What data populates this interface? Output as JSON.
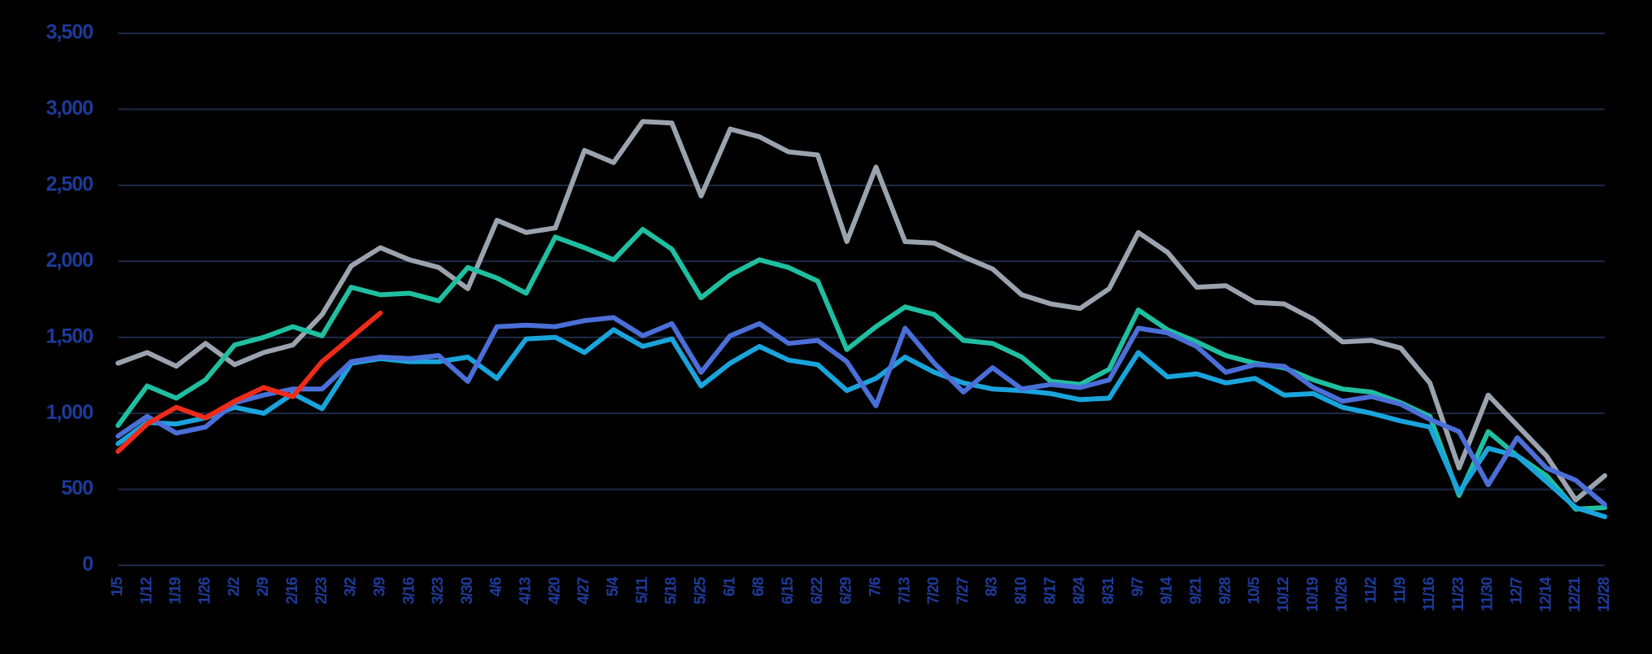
{
  "chart_data": {
    "type": "line",
    "categories": [
      "1/5",
      "1/12",
      "1/19",
      "1/26",
      "2/2",
      "2/9",
      "2/16",
      "2/23",
      "3/2",
      "3/9",
      "3/16",
      "3/23",
      "3/30",
      "4/6",
      "4/13",
      "4/20",
      "4/27",
      "5/4",
      "5/11",
      "5/18",
      "5/25",
      "6/1",
      "6/8",
      "6/15",
      "6/22",
      "6/29",
      "7/6",
      "7/13",
      "7/20",
      "7/27",
      "8/3",
      "8/10",
      "8/17",
      "8/24",
      "8/31",
      "9/7",
      "9/14",
      "9/21",
      "9/28",
      "10/5",
      "10/12",
      "10/19",
      "10/26",
      "11/2",
      "11/9",
      "11/16",
      "11/23",
      "11/30",
      "12/7",
      "12/14",
      "12/21",
      "12/28"
    ],
    "series": [
      {
        "color": "#9ba3ae",
        "values": [
          1330,
          1400,
          1310,
          1460,
          1320,
          1400,
          1450,
          1650,
          1970,
          2090,
          2010,
          1960,
          1820,
          2270,
          2190,
          2220,
          2730,
          2650,
          2920,
          2910,
          2430,
          2870,
          2820,
          2720,
          2700,
          2130,
          2620,
          2130,
          2120,
          2030,
          1950,
          1780,
          1720,
          1690,
          1820,
          2190,
          2060,
          1830,
          1840,
          1730,
          1720,
          1620,
          1470,
          1480,
          1430,
          1200,
          640,
          1120,
          920,
          720,
          430,
          590
        ]
      },
      {
        "color": "#1fbfa0",
        "values": [
          920,
          1180,
          1100,
          1220,
          1450,
          1500,
          1570,
          1510,
          1830,
          1780,
          1790,
          1740,
          1960,
          1890,
          1790,
          2160,
          2090,
          2010,
          2210,
          2080,
          1760,
          1910,
          2010,
          1960,
          1870,
          1420,
          1570,
          1700,
          1650,
          1480,
          1460,
          1370,
          1210,
          1190,
          1290,
          1680,
          1550,
          1470,
          1380,
          1330,
          1300,
          1220,
          1160,
          1140,
          1070,
          980,
          460,
          880,
          720,
          590,
          370,
          380
        ]
      },
      {
        "color": "#1aa4dc",
        "values": [
          800,
          940,
          930,
          970,
          1040,
          1000,
          1130,
          1030,
          1330,
          1360,
          1340,
          1340,
          1370,
          1230,
          1490,
          1500,
          1400,
          1550,
          1440,
          1490,
          1180,
          1330,
          1440,
          1350,
          1320,
          1150,
          1230,
          1370,
          1270,
          1200,
          1160,
          1150,
          1130,
          1090,
          1100,
          1400,
          1240,
          1260,
          1200,
          1230,
          1120,
          1130,
          1040,
          1000,
          950,
          910,
          480,
          770,
          720,
          550,
          380,
          320
        ]
      },
      {
        "color": "#4b6fd8",
        "values": [
          850,
          980,
          870,
          910,
          1070,
          1120,
          1160,
          1160,
          1340,
          1370,
          1360,
          1380,
          1210,
          1570,
          1580,
          1570,
          1610,
          1630,
          1510,
          1590,
          1270,
          1510,
          1590,
          1460,
          1480,
          1340,
          1050,
          1560,
          1330,
          1140,
          1300,
          1160,
          1190,
          1170,
          1220,
          1560,
          1530,
          1440,
          1270,
          1320,
          1310,
          1170,
          1080,
          1110,
          1060,
          960,
          880,
          530,
          840,
          640,
          560,
          400
        ]
      },
      {
        "color": "#ee2b1a",
        "values": [
          750,
          930,
          1040,
          970,
          1080,
          1170,
          1110,
          1340,
          1500,
          1660,
          null,
          null,
          null,
          null,
          null,
          null,
          null,
          null,
          null,
          null,
          null,
          null,
          null,
          null,
          null,
          null,
          null,
          null,
          null,
          null,
          null,
          null,
          null,
          null,
          null,
          null,
          null,
          null,
          null,
          null,
          null,
          null,
          null,
          null,
          null,
          null,
          null,
          null,
          null,
          null,
          null,
          null
        ]
      }
    ],
    "ylim": [
      0,
      3500
    ],
    "yticks": [
      0,
      500,
      {
        "value": 1000,
        "label": "1,000"
      },
      {
        "value": 1500,
        "label": "1,500"
      },
      {
        "value": 2000,
        "label": "2,000"
      },
      {
        "value": 2500,
        "label": "2,500"
      },
      {
        "value": 3000,
        "label": "3,000"
      },
      {
        "value": 3500,
        "label": "3,500"
      }
    ],
    "grid": true
  }
}
